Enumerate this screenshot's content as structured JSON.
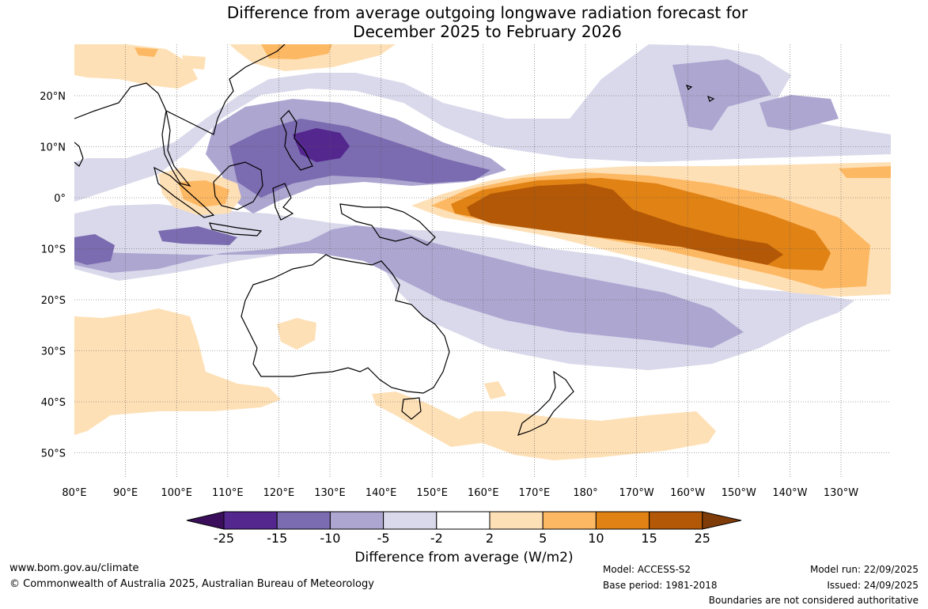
{
  "title": {
    "line1": "Difference from average outgoing longwave radiation forecast for",
    "line2": "December 2025 to February 2026"
  },
  "map": {
    "lat_labels": [
      "20°N",
      "10°N",
      "0°",
      "10°S",
      "20°S",
      "30°S",
      "40°S",
      "50°S"
    ],
    "lon_labels": [
      "80°E",
      "90°E",
      "100°E",
      "110°E",
      "120°E",
      "130°E",
      "140°E",
      "150°E",
      "160°E",
      "170°E",
      "180°",
      "170°W",
      "160°W",
      "150°W",
      "140°W",
      "130°W"
    ]
  },
  "colorbar": {
    "ticks": [
      "-25",
      "-15",
      "-10",
      "-5",
      "-2",
      "2",
      "5",
      "10",
      "15",
      "25"
    ],
    "colors": [
      "#3b0e5c",
      "#54278f",
      "#7b6bb0",
      "#ada6d0",
      "#d9d9eb",
      "#ffffff",
      "#fee0b6",
      "#fdb863",
      "#e08214",
      "#b35806",
      "#7f3b08"
    ],
    "title": "Difference from average (W/m2)"
  },
  "footer": {
    "website": "www.bom.gov.au/climate",
    "copyright": "© Commonwealth of Australia 2025, Australian Bureau of Meteorology",
    "model": "Model: ACCESS-S2",
    "base_period": "Base period: 1981-2018",
    "model_run": "Model run: 22/09/2025",
    "issued": "Issued: 24/09/2025",
    "disclaimer": "Boundaries are not considered authoritative"
  }
}
